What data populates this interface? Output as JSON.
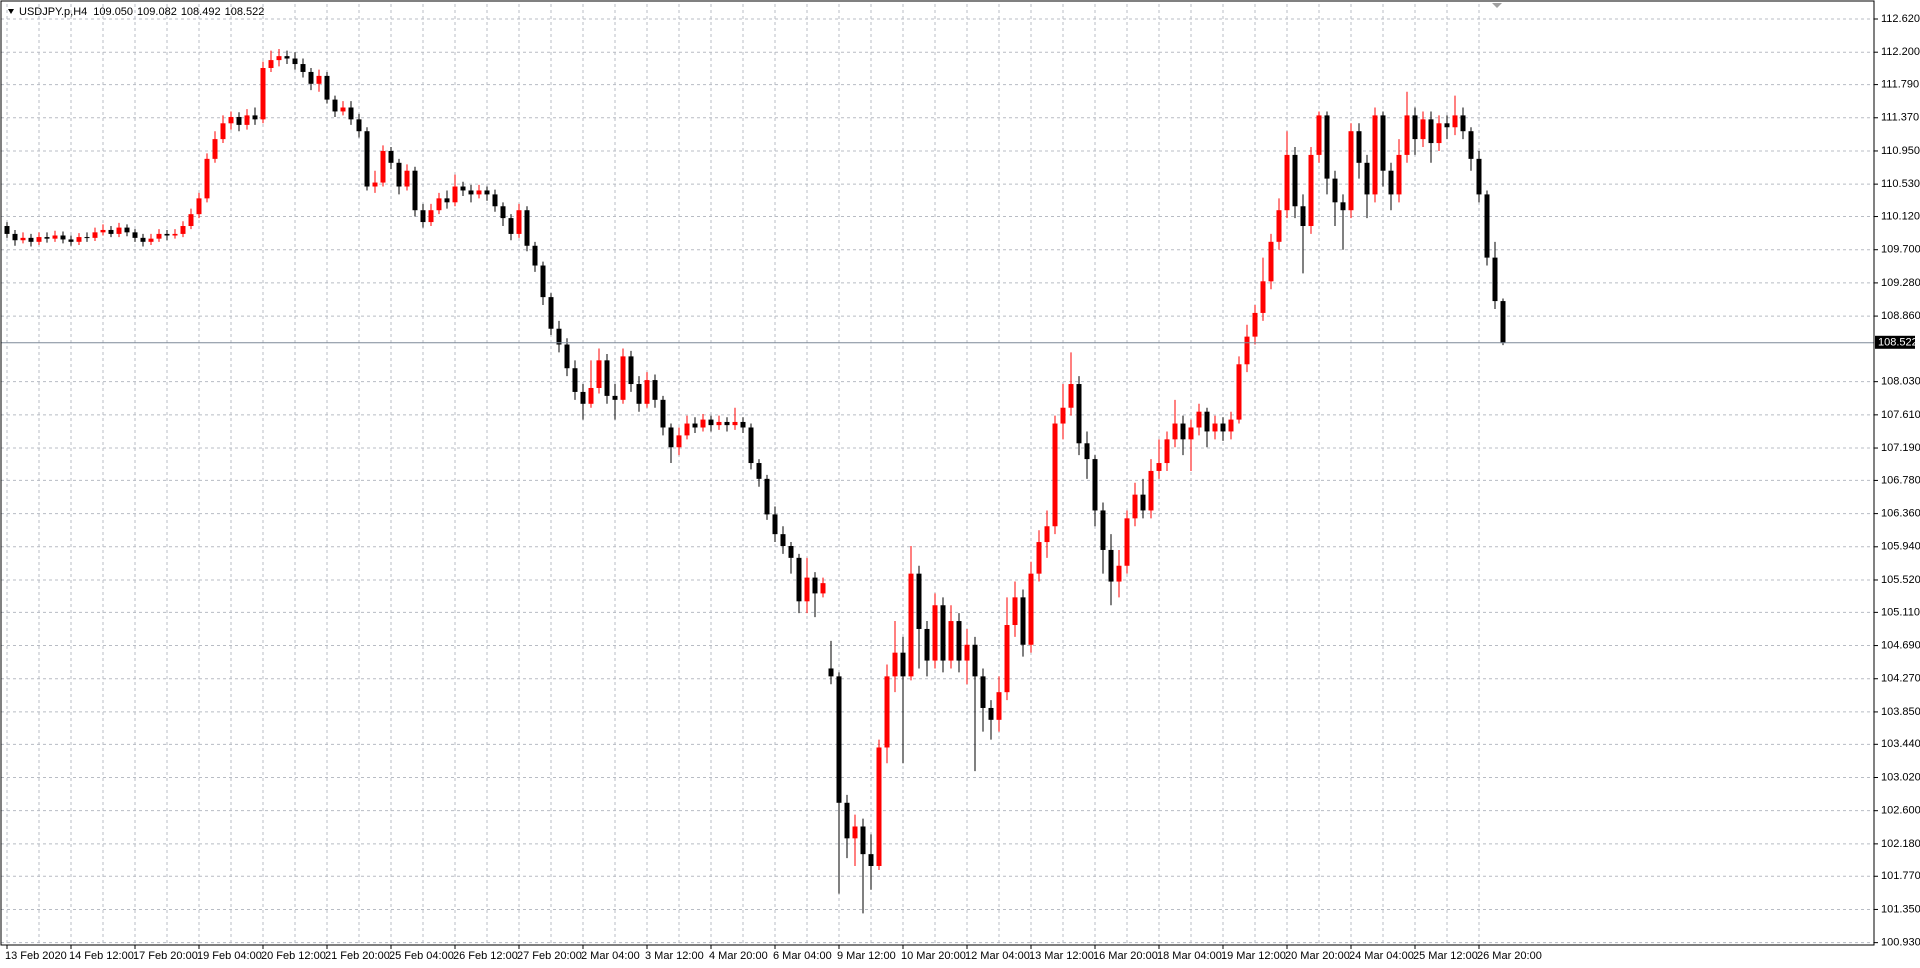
{
  "chart_data": {
    "type": "candlestick",
    "symbol": "USDJPY.p,H4",
    "header_labels": [
      "109.050",
      "109.082",
      "108.492",
      "108.522"
    ],
    "up_color": "#ff0000",
    "down_color": "#000000",
    "grid": true,
    "ylim": [
      100.9,
      112.81
    ],
    "yticks": [
      {
        "value": 112.62,
        "label": "112.620"
      },
      {
        "value": 112.2,
        "label": "112.200"
      },
      {
        "value": 111.79,
        "label": "111.790"
      },
      {
        "value": 111.37,
        "label": "111.370"
      },
      {
        "value": 110.95,
        "label": "110.950"
      },
      {
        "value": 110.53,
        "label": "110.530"
      },
      {
        "value": 110.12,
        "label": "110.120"
      },
      {
        "value": 109.7,
        "label": "109.700"
      },
      {
        "value": 109.28,
        "label": "109.280"
      },
      {
        "value": 108.86,
        "label": "108.860"
      },
      {
        "value": 108.03,
        "label": "108.030"
      },
      {
        "value": 107.61,
        "label": "107.610"
      },
      {
        "value": 107.19,
        "label": "107.190"
      },
      {
        "value": 106.78,
        "label": "106.780"
      },
      {
        "value": 106.36,
        "label": "106.360"
      },
      {
        "value": 105.94,
        "label": "105.940"
      },
      {
        "value": 105.52,
        "label": "105.520"
      },
      {
        "value": 105.11,
        "label": "105.110"
      },
      {
        "value": 104.69,
        "label": "104.690"
      },
      {
        "value": 104.27,
        "label": "104.270"
      },
      {
        "value": 103.85,
        "label": "103.850"
      },
      {
        "value": 103.44,
        "label": "103.440"
      },
      {
        "value": 103.02,
        "label": "103.020"
      },
      {
        "value": 102.6,
        "label": "102.600"
      },
      {
        "value": 102.18,
        "label": "102.180"
      },
      {
        "value": 101.77,
        "label": "101.770"
      },
      {
        "value": 101.35,
        "label": "101.350"
      },
      {
        "value": 100.93,
        "label": "100.930"
      }
    ],
    "categories": [
      "13 Feb 2020",
      null,
      null,
      null,
      null,
      null,
      null,
      null,
      "14 Feb 12:00",
      null,
      null,
      null,
      null,
      null,
      null,
      null,
      "17 Feb 20:00",
      null,
      null,
      null,
      null,
      null,
      null,
      null,
      "19 Feb 04:00",
      null,
      null,
      null,
      null,
      null,
      null,
      null,
      "20 Feb 12:00",
      null,
      null,
      null,
      null,
      null,
      null,
      null,
      "21 Feb 20:00",
      null,
      null,
      null,
      null,
      null,
      null,
      null,
      "25 Feb 04:00",
      null,
      null,
      null,
      null,
      null,
      null,
      null,
      "26 Feb 12:00",
      null,
      null,
      null,
      null,
      null,
      null,
      null,
      "27 Feb 20:00",
      null,
      null,
      null,
      null,
      null,
      null,
      null,
      "2 Mar 04:00",
      null,
      null,
      null,
      null,
      null,
      null,
      null,
      "3 Mar 12:00",
      null,
      null,
      null,
      null,
      null,
      null,
      null,
      "4 Mar 20:00",
      null,
      null,
      null,
      null,
      null,
      null,
      null,
      "6 Mar 04:00",
      null,
      null,
      null,
      null,
      null,
      null,
      null,
      "9 Mar 12:00",
      null,
      null,
      null,
      null,
      null,
      null,
      null,
      "10 Mar 20:00",
      null,
      null,
      null,
      null,
      null,
      null,
      null,
      "12 Mar 04:00",
      null,
      null,
      null,
      null,
      null,
      null,
      null,
      "13 Mar 12:00",
      null,
      null,
      null,
      null,
      null,
      null,
      null,
      "16 Mar 20:00",
      null,
      null,
      null,
      null,
      null,
      null,
      null,
      "18 Mar 04:00",
      null,
      null,
      null,
      null,
      null,
      null,
      null,
      "19 Mar 12:00",
      null,
      null,
      null,
      null,
      null,
      null,
      null,
      "20 Mar 20:00",
      null,
      null,
      null,
      null,
      null,
      null,
      null,
      "24 Mar 04:00",
      null,
      null,
      null,
      null,
      null,
      null,
      null,
      "25 Mar 12:00",
      null,
      null,
      null,
      null,
      null,
      null,
      null,
      "26 Mar 20:00",
      null,
      null,
      null
    ],
    "open": [
      110.0,
      109.9,
      109.82,
      109.85,
      109.8,
      109.86,
      109.84,
      109.88,
      109.83,
      109.8,
      109.86,
      109.85,
      109.92,
      109.95,
      109.9,
      109.98,
      109.92,
      109.85,
      109.8,
      109.84,
      109.9,
      109.88,
      109.9,
      110.0,
      110.15,
      110.35,
      110.85,
      111.1,
      111.3,
      111.38,
      111.28,
      111.4,
      111.35,
      112.0,
      112.1,
      112.15,
      112.12,
      112.05,
      111.95,
      111.8,
      111.9,
      111.6,
      111.45,
      111.5,
      111.35,
      111.2,
      110.5,
      110.55,
      110.95,
      110.8,
      110.5,
      110.7,
      110.2,
      110.05,
      110.2,
      110.35,
      110.3,
      110.5,
      110.45,
      110.4,
      110.45,
      110.4,
      110.25,
      110.1,
      109.9,
      110.2,
      109.75,
      109.5,
      109.1,
      108.7,
      108.5,
      108.2,
      107.9,
      107.75,
      107.95,
      108.3,
      107.85,
      107.8,
      108.35,
      108.0,
      107.75,
      108.05,
      107.8,
      107.45,
      107.2,
      107.35,
      107.5,
      107.45,
      107.55,
      107.48,
      107.52,
      107.48,
      107.52,
      107.45,
      107.0,
      106.8,
      106.35,
      106.1,
      105.95,
      105.8,
      105.25,
      105.55,
      105.35,
      104.4,
      104.3,
      102.7,
      102.25,
      102.4,
      102.05,
      101.9,
      103.4,
      104.3,
      104.6,
      104.3,
      105.6,
      104.9,
      104.5,
      105.2,
      104.5,
      105.0,
      104.5,
      104.7,
      104.3,
      103.9,
      103.75,
      104.1,
      104.95,
      105.3,
      104.7,
      105.6,
      106.0,
      106.2,
      107.5,
      107.7,
      108.0,
      107.25,
      107.05,
      106.4,
      105.9,
      105.5,
      105.7,
      106.3,
      106.6,
      106.4,
      106.9,
      107.0,
      107.3,
      107.5,
      107.3,
      107.45,
      107.65,
      107.4,
      107.5,
      107.4,
      107.55,
      108.25,
      108.6,
      108.9,
      109.3,
      109.8,
      110.2,
      110.9,
      110.25,
      110.0,
      110.9,
      111.4,
      110.6,
      110.3,
      110.2,
      111.2,
      110.8,
      110.4,
      111.4,
      110.7,
      110.4,
      110.9,
      111.4,
      111.1,
      111.35,
      111.05,
      111.3,
      111.25,
      111.4,
      111.2,
      110.85,
      110.4,
      109.6,
      109.05
    ],
    "high": [
      110.05,
      109.95,
      109.92,
      109.9,
      109.92,
      109.92,
      109.94,
      109.93,
      109.88,
      109.91,
      109.92,
      109.98,
      110.02,
      110.0,
      110.04,
      110.02,
      109.96,
      109.9,
      109.9,
      109.96,
      109.95,
      109.96,
      110.06,
      110.22,
      110.42,
      110.92,
      111.2,
      111.4,
      111.45,
      111.44,
      111.48,
      111.5,
      112.08,
      112.22,
      112.24,
      112.22,
      112.2,
      112.12,
      112.0,
      111.98,
      111.95,
      111.65,
      111.58,
      111.58,
      111.42,
      111.25,
      110.7,
      111.02,
      111.0,
      110.85,
      110.78,
      110.75,
      110.28,
      110.28,
      110.42,
      110.45,
      110.65,
      110.56,
      110.52,
      110.52,
      110.5,
      110.46,
      110.3,
      110.15,
      110.28,
      110.25,
      109.8,
      109.55,
      109.15,
      108.8,
      108.58,
      108.3,
      108.0,
      108.3,
      108.45,
      108.38,
      108.0,
      108.45,
      108.42,
      108.1,
      108.15,
      108.12,
      107.85,
      107.5,
      107.45,
      107.6,
      107.58,
      107.62,
      107.6,
      107.6,
      107.58,
      107.7,
      107.58,
      107.5,
      107.05,
      106.85,
      106.45,
      106.2,
      106.0,
      105.85,
      105.8,
      105.62,
      105.55,
      104.75,
      104.35,
      102.8,
      102.55,
      102.5,
      102.3,
      103.5,
      104.45,
      105.0,
      104.8,
      105.95,
      105.7,
      105.0,
      105.35,
      105.3,
      105.2,
      105.1,
      104.9,
      104.8,
      104.4,
      104.0,
      104.3,
      105.3,
      105.5,
      105.4,
      105.75,
      106.15,
      106.4,
      107.6,
      108.0,
      108.4,
      108.1,
      107.4,
      107.1,
      106.5,
      106.1,
      105.9,
      106.4,
      106.75,
      106.8,
      107.05,
      107.3,
      107.4,
      107.8,
      107.6,
      107.55,
      107.75,
      107.7,
      107.6,
      107.58,
      107.65,
      108.35,
      108.75,
      109.0,
      109.6,
      109.9,
      110.35,
      111.2,
      111.0,
      110.4,
      111.0,
      111.45,
      111.45,
      110.7,
      110.4,
      111.3,
      111.3,
      110.9,
      111.5,
      111.45,
      110.8,
      111.1,
      111.7,
      111.5,
      111.45,
      111.45,
      111.4,
      111.4,
      111.65,
      111.5,
      111.25,
      110.95,
      110.45,
      109.8,
      109.082
    ],
    "low": [
      109.85,
      109.75,
      109.78,
      109.74,
      109.76,
      109.79,
      109.8,
      109.78,
      109.75,
      109.76,
      109.8,
      109.81,
      109.88,
      109.86,
      109.86,
      109.87,
      109.8,
      109.74,
      109.76,
      109.8,
      109.82,
      109.84,
      109.86,
      109.96,
      110.1,
      110.3,
      110.8,
      111.05,
      111.22,
      111.2,
      111.22,
      111.28,
      111.3,
      111.95,
      112.02,
      112.05,
      111.98,
      111.88,
      111.72,
      111.7,
      111.55,
      111.38,
      111.4,
      111.28,
      111.12,
      110.45,
      110.42,
      110.5,
      110.72,
      110.4,
      110.45,
      110.12,
      109.98,
      110.0,
      110.15,
      110.22,
      110.25,
      110.38,
      110.3,
      110.35,
      110.32,
      110.18,
      110.0,
      109.82,
      109.85,
      109.68,
      109.42,
      109.0,
      108.62,
      108.4,
      108.1,
      107.8,
      107.55,
      107.7,
      107.88,
      107.75,
      107.55,
      107.75,
      107.9,
      107.65,
      107.7,
      107.7,
      107.35,
      107.0,
      107.1,
      107.3,
      107.38,
      107.4,
      107.4,
      107.42,
      107.4,
      107.42,
      107.38,
      106.92,
      106.7,
      106.28,
      106.0,
      105.85,
      105.6,
      105.1,
      105.1,
      105.05,
      105.3,
      104.2,
      101.55,
      102.0,
      101.9,
      101.3,
      101.6,
      101.85,
      103.2,
      104.1,
      103.2,
      104.25,
      104.4,
      104.3,
      104.4,
      104.35,
      104.4,
      104.35,
      104.2,
      103.1,
      103.6,
      103.5,
      103.6,
      104.0,
      104.8,
      104.55,
      104.6,
      105.5,
      105.8,
      106.1,
      107.3,
      107.6,
      107.1,
      106.8,
      106.2,
      105.6,
      105.2,
      105.3,
      105.6,
      106.2,
      106.3,
      106.3,
      106.8,
      106.9,
      107.2,
      107.1,
      106.9,
      107.35,
      107.2,
      107.3,
      107.28,
      107.3,
      107.5,
      108.15,
      108.5,
      108.8,
      109.2,
      109.7,
      110.1,
      110.1,
      109.4,
      109.9,
      110.8,
      110.4,
      110.0,
      109.7,
      110.1,
      110.6,
      110.1,
      110.3,
      110.5,
      110.2,
      110.3,
      110.8,
      110.9,
      111.0,
      110.8,
      110.95,
      111.1,
      111.15,
      111.1,
      110.7,
      110.3,
      109.5,
      108.95,
      108.492
    ],
    "close": [
      109.9,
      109.82,
      109.85,
      109.8,
      109.86,
      109.84,
      109.88,
      109.83,
      109.8,
      109.86,
      109.85,
      109.92,
      109.95,
      109.9,
      109.98,
      109.92,
      109.85,
      109.8,
      109.84,
      109.9,
      109.88,
      109.9,
      110.0,
      110.15,
      110.35,
      110.85,
      111.1,
      111.3,
      111.38,
      111.28,
      111.4,
      111.35,
      112.0,
      112.1,
      112.15,
      112.12,
      112.05,
      111.95,
      111.8,
      111.9,
      111.6,
      111.45,
      111.5,
      111.35,
      111.2,
      110.5,
      110.55,
      110.95,
      110.8,
      110.5,
      110.7,
      110.2,
      110.05,
      110.2,
      110.35,
      110.3,
      110.5,
      110.45,
      110.4,
      110.45,
      110.4,
      110.25,
      110.1,
      109.9,
      110.2,
      109.75,
      109.5,
      109.1,
      108.7,
      108.5,
      108.2,
      107.9,
      107.75,
      107.95,
      108.3,
      107.85,
      107.8,
      108.35,
      108.0,
      107.75,
      108.05,
      107.8,
      107.45,
      107.2,
      107.35,
      107.5,
      107.45,
      107.55,
      107.48,
      107.52,
      107.48,
      107.52,
      107.45,
      107.0,
      106.8,
      106.35,
      106.1,
      105.95,
      105.8,
      105.25,
      105.55,
      105.35,
      105.48,
      104.3,
      102.7,
      102.25,
      102.4,
      102.05,
      101.9,
      103.4,
      104.3,
      104.6,
      104.3,
      105.6,
      104.9,
      104.5,
      105.2,
      104.5,
      105.0,
      104.5,
      104.7,
      104.3,
      103.9,
      103.75,
      104.1,
      104.95,
      105.3,
      104.7,
      105.6,
      106.0,
      106.2,
      107.5,
      107.7,
      108.0,
      107.25,
      107.05,
      106.4,
      105.9,
      105.5,
      105.7,
      106.3,
      106.6,
      106.4,
      106.9,
      107.0,
      107.3,
      107.5,
      107.3,
      107.45,
      107.65,
      107.4,
      107.5,
      107.4,
      107.55,
      108.25,
      108.6,
      108.9,
      109.3,
      109.8,
      110.2,
      110.9,
      110.25,
      110.0,
      110.9,
      111.4,
      110.6,
      110.3,
      110.2,
      111.2,
      110.8,
      110.4,
      111.4,
      110.7,
      110.4,
      110.9,
      111.4,
      111.1,
      111.35,
      111.05,
      111.3,
      111.25,
      111.4,
      111.2,
      110.85,
      110.4,
      109.6,
      109.05,
      108.522
    ]
  }
}
